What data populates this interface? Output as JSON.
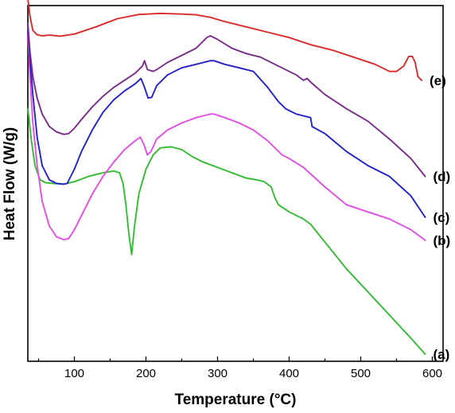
{
  "chart_data": {
    "type": "line",
    "title": "",
    "xlabel": "Temperature",
    "xlabel_unit": "°C",
    "ylabel": "Heat Flow (W/g)",
    "xlim": [
      35,
      615
    ],
    "ylim": [
      0,
      100
    ],
    "xticks": [
      100,
      200,
      300,
      400,
      500,
      600
    ],
    "grid": false,
    "legend": "none",
    "series": [
      {
        "name": "(a)",
        "color": "#33bb33",
        "x": [
          35,
          40,
          45,
          52,
          60,
          70,
          85,
          100,
          120,
          140,
          155,
          163,
          168,
          172,
          176,
          180,
          184,
          190,
          200,
          210,
          220,
          235,
          250,
          265,
          280,
          300,
          320,
          340,
          355,
          365,
          375,
          380,
          385,
          400,
          420,
          430,
          450,
          480,
          510,
          540,
          570,
          590
        ],
        "y": [
          71,
          62,
          55,
          51,
          50.2,
          50,
          49.8,
          50.5,
          52,
          53,
          53.5,
          53,
          50,
          44,
          36,
          30,
          38,
          47,
          54,
          58,
          60,
          60.3,
          59.5,
          57.5,
          56,
          54.5,
          53,
          51.5,
          51,
          50.5,
          49,
          46,
          44,
          42,
          40,
          38.5,
          33.5,
          26,
          19.5,
          13,
          6.5,
          2
        ]
      },
      {
        "name": "(b)",
        "color": "#e34ee3",
        "x": [
          35,
          38,
          42,
          48,
          55,
          65,
          75,
          85,
          92,
          100,
          110,
          125,
          140,
          155,
          170,
          185,
          192,
          197,
          202,
          207,
          215,
          230,
          250,
          270,
          290,
          295,
          310,
          330,
          350,
          370,
          390,
          400,
          420,
          450,
          480,
          510,
          540,
          570,
          590
        ],
        "y": [
          92,
          80,
          67,
          55,
          45,
          38,
          35,
          34.2,
          34.5,
          37,
          41,
          47,
          52,
          56,
          59.5,
          62,
          63,
          61,
          58,
          59,
          62.5,
          65,
          67,
          68.5,
          69.5,
          69.5,
          68.5,
          67,
          65,
          62,
          58,
          57,
          54.5,
          49,
          44,
          42,
          40,
          37,
          34
        ]
      },
      {
        "name": "(c)",
        "color": "#2222cc",
        "x": [
          35,
          38,
          42,
          48,
          55,
          65,
          75,
          85,
          90,
          100,
          110,
          125,
          140,
          155,
          170,
          185,
          193,
          198,
          203,
          208,
          215,
          230,
          250,
          270,
          290,
          295,
          310,
          330,
          350,
          370,
          385,
          395,
          410,
          430,
          432,
          450,
          480,
          510,
          540,
          570,
          590
        ],
        "y": [
          93,
          85,
          75,
          63,
          55,
          51,
          50,
          49.8,
          50,
          54,
          59,
          65,
          70,
          73.5,
          76,
          78,
          79.5,
          77,
          74,
          74.2,
          77.5,
          80.5,
          82.5,
          83.5,
          84.5,
          84.5,
          83.5,
          82.5,
          81.5,
          77,
          73,
          71,
          69.5,
          68.5,
          66,
          64,
          59,
          55,
          52,
          46.5,
          40.5
        ]
      },
      {
        "name": "(d)",
        "color": "#7a2a8a",
        "x": [
          35,
          38,
          42,
          48,
          55,
          65,
          75,
          85,
          92,
          100,
          110,
          125,
          140,
          155,
          170,
          185,
          195,
          198,
          202,
          210,
          215,
          230,
          250,
          270,
          285,
          290,
          300,
          320,
          340,
          360,
          380,
          410,
          420,
          425,
          430,
          450,
          480,
          510,
          540,
          570,
          590
        ],
        "y": [
          95,
          87,
          80,
          74,
          69.5,
          66,
          64.5,
          63.8,
          64,
          65.5,
          68,
          71.5,
          74.5,
          77,
          79,
          81,
          83,
          84.5,
          82,
          81.5,
          82,
          84,
          86,
          88,
          91,
          91.5,
          90.5,
          88,
          86.5,
          85.5,
          83.5,
          80.5,
          79,
          79.5,
          78.5,
          75,
          71,
          67.5,
          62.5,
          57,
          52
        ]
      },
      {
        "name": "(e)",
        "color": "#d92b2b",
        "x": [
          35,
          38,
          42,
          48,
          55,
          65,
          80,
          100,
          130,
          160,
          190,
          220,
          250,
          270,
          290,
          310,
          340,
          370,
          400,
          430,
          460,
          490,
          520,
          540,
          550,
          560,
          567,
          572,
          576,
          580,
          585
        ],
        "y": [
          102,
          97,
          93,
          91.8,
          91.5,
          91.7,
          91.4,
          92,
          94,
          96.3,
          97.5,
          97.8,
          97.6,
          97.4,
          96.7,
          95.5,
          94,
          92.5,
          91,
          89,
          87.5,
          85.5,
          83.5,
          81.5,
          81.5,
          83,
          85.7,
          85.7,
          84,
          80,
          79
        ]
      }
    ]
  }
}
